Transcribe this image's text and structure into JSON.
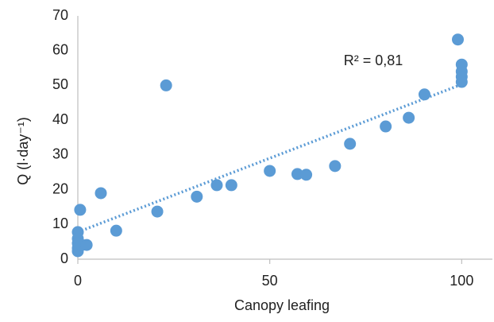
{
  "chart_data": {
    "type": "scatter",
    "x_label": "Canopy leafing",
    "y_label": "Q (l·day⁻¹)",
    "annotation": "R² = 0,81",
    "color": "#5b9bd5",
    "grid": false,
    "x": [
      0.6,
      0,
      0,
      0,
      0,
      0,
      1,
      2.3,
      6,
      10,
      23,
      20.7,
      31,
      36.2,
      40,
      50,
      57.2,
      59.5,
      67,
      70.9,
      80.2,
      86.2,
      90.3,
      99,
      100,
      100,
      100,
      100
    ],
    "values": [
      14.2,
      7.8,
      5.9,
      4.6,
      3.2,
      2.3,
      4.1,
      4.1,
      19,
      8.2,
      50,
      13.7,
      18,
      21.3,
      21.3,
      25.4,
      24.5,
      24.3,
      26.8,
      33.2,
      38.2,
      40.7,
      47.4,
      63.2,
      56,
      54,
      52.5,
      51
    ],
    "trendline": {
      "x": [
        0,
        100
      ],
      "y": [
        7.8,
        50.3
      ]
    },
    "xlim": [
      0,
      108
    ],
    "ylim": [
      0,
      70
    ],
    "xticks": [
      0,
      50,
      100
    ],
    "yticks": [
      0,
      10,
      20,
      30,
      40,
      50,
      60,
      70
    ]
  }
}
